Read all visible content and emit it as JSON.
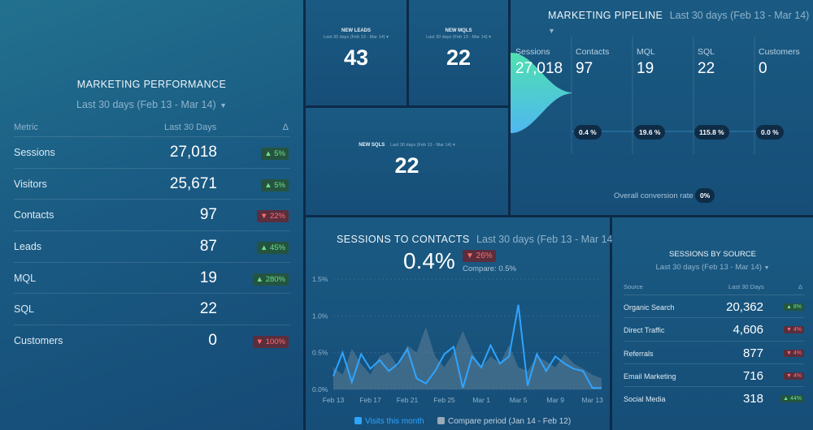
{
  "performance": {
    "title": "MARKETING PERFORMANCE",
    "period": "Last 30 days (Feb 13 - Mar 14)",
    "col_metric": "Metric",
    "col_value": "Last 30 Days",
    "col_delta": "Δ",
    "rows": [
      {
        "metric": "Sessions",
        "value": "27,018",
        "delta": "▲ 5%",
        "dir": "up"
      },
      {
        "metric": "Visitors",
        "value": "25,671",
        "delta": "▲ 5%",
        "dir": "up"
      },
      {
        "metric": "Contacts",
        "value": "97",
        "delta": "▼ 22%",
        "dir": "down"
      },
      {
        "metric": "Leads",
        "value": "87",
        "delta": "▲ 45%",
        "dir": "up"
      },
      {
        "metric": "MQL",
        "value": "19",
        "delta": "▲ 280%",
        "dir": "up"
      },
      {
        "metric": "SQL",
        "value": "22",
        "delta": "",
        "dir": ""
      },
      {
        "metric": "Customers",
        "value": "0",
        "delta": "▼ 100%",
        "dir": "down"
      }
    ]
  },
  "kpis": {
    "leads": {
      "label": "NEW LEADS",
      "period": "Last 30 days (Feb 13 - Mar 14)",
      "value": "43"
    },
    "mqls": {
      "label": "NEW MQLS",
      "period": "Last 30 days (Feb 13 - Mar 14)",
      "value": "22"
    },
    "sqls": {
      "label": "NEW SQLS",
      "period": "Last 30 days (Feb 13 - Mar 14)",
      "value": "22"
    }
  },
  "pipeline": {
    "title": "MARKETING PIPELINE",
    "period": "Last 30 days (Feb 13 - Mar 14)",
    "stages": [
      {
        "name": "Sessions",
        "count": "27,018"
      },
      {
        "name": "Contacts",
        "count": "97"
      },
      {
        "name": "MQL",
        "count": "19"
      },
      {
        "name": "SQL",
        "count": "22"
      },
      {
        "name": "Customers",
        "count": "0"
      }
    ],
    "rates": [
      "0.4 %",
      "19.6 %",
      "115.8 %",
      "0.0 %"
    ],
    "overall_label": "Overall conversion rate",
    "overall_value": "0%"
  },
  "s2c": {
    "title": "SESSIONS TO CONTACTS",
    "period": "Last 30 days (Feb 13 - Mar 14)",
    "value": "0.4%",
    "delta": "▼ 26%",
    "compare": "Compare: 0.5%",
    "legend_current": "Visits this month",
    "legend_compare": "Compare period (Jan 14 - Feb 12)",
    "colors": {
      "current": "#2fa4ff",
      "compare": "#5f7f98"
    }
  },
  "chart_data": {
    "type": "line",
    "x": [
      "Feb 13",
      "Feb 14",
      "Feb 15",
      "Feb 16",
      "Feb 17",
      "Feb 18",
      "Feb 19",
      "Feb 20",
      "Feb 21",
      "Feb 22",
      "Feb 23",
      "Feb 24",
      "Feb 25",
      "Feb 26",
      "Feb 27",
      "Feb 28",
      "Mar 1",
      "Mar 2",
      "Mar 3",
      "Mar 4",
      "Mar 5",
      "Mar 6",
      "Mar 7",
      "Mar 8",
      "Mar 9",
      "Mar 10",
      "Mar 11",
      "Mar 12",
      "Mar 13",
      "Mar 14"
    ],
    "xticks": [
      "Feb 13",
      "Feb 17",
      "Feb 21",
      "Feb 25",
      "Mar 1",
      "Mar 5",
      "Mar 9",
      "Mar 13"
    ],
    "yticks": [
      "0.0%",
      "0.5%",
      "1.0%",
      "1.5%"
    ],
    "ylim": [
      0,
      1.5
    ],
    "series": [
      {
        "values": [
          0.18,
          0.5,
          0.1,
          0.48,
          0.28,
          0.4,
          0.25,
          0.35,
          0.55,
          0.15,
          0.08,
          0.25,
          0.48,
          0.58,
          0.02,
          0.45,
          0.3,
          0.6,
          0.35,
          0.45,
          1.15,
          0.05,
          0.48,
          0.25,
          0.45,
          0.35,
          0.28,
          0.25,
          0.02,
          0.02
        ]
      },
      {
        "values": [
          0.3,
          0.2,
          0.55,
          0.35,
          0.2,
          0.45,
          0.5,
          0.3,
          0.6,
          0.5,
          0.85,
          0.45,
          0.3,
          0.5,
          0.8,
          0.5,
          0.3,
          0.45,
          0.35,
          0.6,
          0.3,
          0.25,
          0.45,
          0.38,
          0.3,
          0.48,
          0.35,
          0.28,
          0.2,
          0.15
        ]
      }
    ]
  },
  "sources": {
    "title": "SESSIONS BY SOURCE",
    "period": "Last 30 days (Feb 13 - Mar 14)",
    "col_source": "Source",
    "col_value": "Last 30 Days",
    "col_delta": "Δ",
    "rows": [
      {
        "source": "Organic Search",
        "value": "20,362",
        "delta": "▲ 8%",
        "dir": "up"
      },
      {
        "source": "Direct Traffic",
        "value": "4,606",
        "delta": "▼ 4%",
        "dir": "down"
      },
      {
        "source": "Referrals",
        "value": "877",
        "delta": "▼ 4%",
        "dir": "down"
      },
      {
        "source": "Email Marketing",
        "value": "716",
        "delta": "▼ 4%",
        "dir": "down"
      },
      {
        "source": "Social Media",
        "value": "318",
        "delta": "▲ 44%",
        "dir": "up"
      }
    ]
  }
}
